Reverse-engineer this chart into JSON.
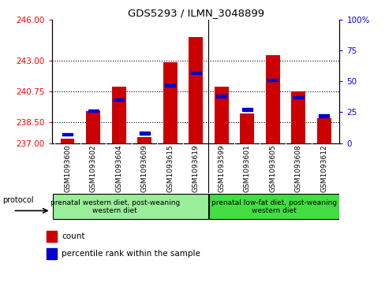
{
  "title": "GDS5293 / ILMN_3048899",
  "samples": [
    "GSM1093600",
    "GSM1093602",
    "GSM1093604",
    "GSM1093609",
    "GSM1093615",
    "GSM1093619",
    "GSM1093599",
    "GSM1093601",
    "GSM1093605",
    "GSM1093608",
    "GSM1093612"
  ],
  "count_values": [
    237.3,
    239.35,
    241.15,
    237.42,
    242.9,
    244.78,
    241.1,
    239.15,
    243.45,
    240.75,
    238.8
  ],
  "percentile_values": [
    7,
    26,
    35,
    8,
    47,
    57,
    38,
    27,
    51,
    37,
    22
  ],
  "ylim_left": [
    237,
    246
  ],
  "yticks_left": [
    237,
    238.5,
    240.75,
    243,
    246
  ],
  "ylim_right": [
    0,
    100
  ],
  "yticks_right": [
    0,
    25,
    50,
    75,
    100
  ],
  "ytick_labels_right": [
    "0",
    "25",
    "50",
    "75",
    "100%"
  ],
  "group1_label": "prenatal western diet, post-weaning\nwestern diet",
  "group2_label": "prenatal low-fat diet, post-weaning\nwestern diet",
  "group1_count": 6,
  "group2_count": 5,
  "protocol_label": "protocol",
  "legend_count_label": "count",
  "legend_percentile_label": "percentile rank within the sample",
  "bar_color": "#cc0000",
  "marker_color": "#0000cc",
  "group1_bg": "#99ee99",
  "group2_bg": "#44dd44",
  "xtick_bg": "#cccccc",
  "bar_width": 0.55
}
